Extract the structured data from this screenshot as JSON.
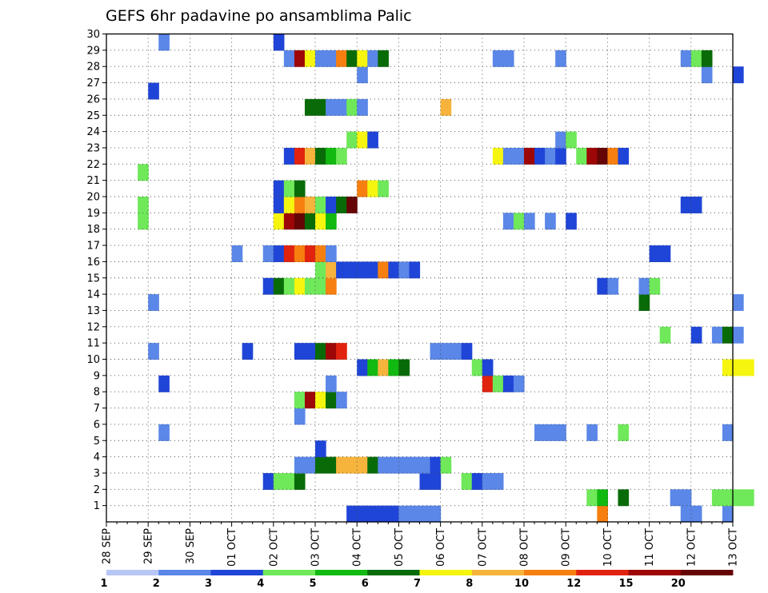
{
  "chart_data": {
    "type": "heatmap",
    "title": "GEFS 6hr padavine po ansamblima Palic",
    "x_labels": [
      "28 SEP",
      "29 SEP",
      "30 SEP",
      "01 OCT",
      "02 OCT",
      "03 OCT",
      "04 OCT",
      "05 OCT",
      "06 OCT",
      "07 OCT",
      "08 OCT",
      "09 OCT",
      "10 OCT",
      "11 OCT",
      "12 OCT",
      "13 OCT"
    ],
    "y_ticks": [
      1,
      2,
      3,
      4,
      5,
      6,
      7,
      8,
      9,
      10,
      11,
      12,
      13,
      14,
      15,
      16,
      17,
      18,
      19,
      20,
      21,
      22,
      23,
      24,
      25,
      26,
      27,
      28,
      29,
      30
    ],
    "x_unit": "6-hour step from 28 SEP 00Z (4 steps per day)",
    "y_range": [
      0,
      30
    ],
    "grid": true,
    "colorbar": {
      "labels": [
        "1",
        "2",
        "3",
        "4",
        "5",
        "6",
        "7",
        "8",
        "10",
        "12",
        "15",
        "20"
      ],
      "colors": [
        "#b7c7f5",
        "#5a87e8",
        "#1f45d8",
        "#6fe85a",
        "#11b911",
        "#086b08",
        "#f5f50f",
        "#f6b43c",
        "#f67f0f",
        "#e1220f",
        "#9e0707",
        "#650505"
      ]
    },
    "cells": [
      [
        23,
        0,
        2
      ],
      [
        24,
        0,
        2
      ],
      [
        25,
        0,
        2
      ],
      [
        26,
        0,
        2
      ],
      [
        27,
        0,
        2
      ],
      [
        28,
        0,
        1
      ],
      [
        29,
        0,
        1
      ],
      [
        30,
        0,
        1
      ],
      [
        31,
        0,
        1
      ],
      [
        47,
        0,
        8
      ],
      [
        55,
        0,
        1
      ],
      [
        56,
        0,
        1
      ],
      [
        59,
        0,
        1
      ],
      [
        46,
        1,
        3
      ],
      [
        47,
        1,
        4
      ],
      [
        49,
        1,
        5
      ],
      [
        54,
        1,
        1
      ],
      [
        55,
        1,
        1
      ],
      [
        58,
        1,
        3
      ],
      [
        59,
        1,
        3
      ],
      [
        60,
        1,
        3
      ],
      [
        61,
        1,
        3
      ],
      [
        15,
        2,
        2
      ],
      [
        16,
        2,
        3
      ],
      [
        17,
        2,
        3
      ],
      [
        18,
        2,
        5
      ],
      [
        30,
        2,
        2
      ],
      [
        31,
        2,
        2
      ],
      [
        34,
        2,
        3
      ],
      [
        35,
        2,
        2
      ],
      [
        36,
        2,
        1
      ],
      [
        37,
        2,
        1
      ],
      [
        18,
        3,
        1
      ],
      [
        19,
        3,
        1
      ],
      [
        20,
        3,
        5
      ],
      [
        21,
        3,
        5
      ],
      [
        22,
        3,
        7
      ],
      [
        23,
        3,
        7
      ],
      [
        24,
        3,
        7
      ],
      [
        25,
        3,
        5
      ],
      [
        26,
        3,
        1
      ],
      [
        27,
        3,
        1
      ],
      [
        28,
        3,
        1
      ],
      [
        29,
        3,
        1
      ],
      [
        30,
        3,
        1
      ],
      [
        31,
        3,
        2
      ],
      [
        32,
        3,
        3
      ],
      [
        20,
        4,
        2
      ],
      [
        5,
        5,
        1
      ],
      [
        41,
        5,
        1
      ],
      [
        42,
        5,
        1
      ],
      [
        43,
        5,
        1
      ],
      [
        46,
        5,
        1
      ],
      [
        49,
        5,
        3
      ],
      [
        59,
        5,
        1
      ],
      [
        18,
        6,
        1
      ],
      [
        18,
        7,
        3
      ],
      [
        19,
        7,
        10
      ],
      [
        20,
        7,
        6
      ],
      [
        21,
        7,
        5
      ],
      [
        22,
        7,
        1
      ],
      [
        5,
        8,
        2
      ],
      [
        21,
        8,
        1
      ],
      [
        36,
        8,
        9
      ],
      [
        37,
        8,
        3
      ],
      [
        38,
        8,
        2
      ],
      [
        39,
        8,
        1
      ],
      [
        24,
        9,
        2
      ],
      [
        25,
        9,
        4
      ],
      [
        26,
        9,
        7
      ],
      [
        27,
        9,
        4
      ],
      [
        28,
        9,
        5
      ],
      [
        35,
        9,
        3
      ],
      [
        36,
        9,
        2
      ],
      [
        59,
        9,
        6
      ],
      [
        60,
        9,
        6
      ],
      [
        61,
        9,
        6
      ],
      [
        4,
        10,
        1
      ],
      [
        13,
        10,
        2
      ],
      [
        18,
        10,
        2
      ],
      [
        19,
        10,
        2
      ],
      [
        20,
        10,
        5
      ],
      [
        21,
        10,
        10
      ],
      [
        22,
        10,
        9
      ],
      [
        31,
        10,
        1
      ],
      [
        32,
        10,
        1
      ],
      [
        33,
        10,
        1
      ],
      [
        34,
        10,
        2
      ],
      [
        53,
        11,
        3
      ],
      [
        56,
        11,
        2
      ],
      [
        58,
        11,
        1
      ],
      [
        59,
        11,
        5
      ],
      [
        60,
        11,
        1
      ],
      [
        4,
        13,
        1
      ],
      [
        51,
        13,
        5
      ],
      [
        60,
        13,
        1
      ],
      [
        15,
        14,
        2
      ],
      [
        16,
        14,
        5
      ],
      [
        17,
        14,
        3
      ],
      [
        18,
        14,
        6
      ],
      [
        19,
        14,
        3
      ],
      [
        20,
        14,
        3
      ],
      [
        21,
        14,
        8
      ],
      [
        47,
        14,
        2
      ],
      [
        48,
        14,
        1
      ],
      [
        51,
        14,
        1
      ],
      [
        52,
        14,
        3
      ],
      [
        20,
        15,
        3
      ],
      [
        21,
        15,
        7
      ],
      [
        22,
        15,
        2
      ],
      [
        23,
        15,
        2
      ],
      [
        24,
        15,
        2
      ],
      [
        25,
        15,
        2
      ],
      [
        26,
        15,
        8
      ],
      [
        27,
        15,
        2
      ],
      [
        28,
        15,
        1
      ],
      [
        29,
        15,
        2
      ],
      [
        12,
        16,
        1
      ],
      [
        15,
        16,
        1
      ],
      [
        16,
        16,
        2
      ],
      [
        17,
        16,
        9
      ],
      [
        18,
        16,
        8
      ],
      [
        19,
        16,
        9
      ],
      [
        20,
        16,
        8
      ],
      [
        21,
        16,
        1
      ],
      [
        52,
        16,
        2
      ],
      [
        53,
        16,
        2
      ],
      [
        3,
        18,
        3
      ],
      [
        16,
        18,
        6
      ],
      [
        17,
        18,
        10
      ],
      [
        18,
        18,
        11
      ],
      [
        19,
        18,
        5
      ],
      [
        20,
        18,
        6
      ],
      [
        21,
        18,
        4
      ],
      [
        38,
        18,
        1
      ],
      [
        39,
        18,
        3
      ],
      [
        40,
        18,
        1
      ],
      [
        42,
        18,
        1
      ],
      [
        44,
        18,
        2
      ],
      [
        3,
        19,
        3
      ],
      [
        16,
        19,
        2
      ],
      [
        17,
        19,
        6
      ],
      [
        18,
        19,
        8
      ],
      [
        19,
        19,
        7
      ],
      [
        20,
        19,
        3
      ],
      [
        21,
        19,
        2
      ],
      [
        22,
        19,
        5
      ],
      [
        23,
        19,
        11
      ],
      [
        55,
        19,
        2
      ],
      [
        56,
        19,
        2
      ],
      [
        16,
        20,
        2
      ],
      [
        17,
        20,
        3
      ],
      [
        18,
        20,
        5
      ],
      [
        24,
        20,
        8
      ],
      [
        25,
        20,
        6
      ],
      [
        26,
        20,
        3
      ],
      [
        3,
        21,
        3
      ],
      [
        17,
        22,
        2
      ],
      [
        18,
        22,
        9
      ],
      [
        19,
        22,
        7
      ],
      [
        20,
        22,
        5
      ],
      [
        21,
        22,
        4
      ],
      [
        22,
        22,
        3
      ],
      [
        37,
        22,
        6
      ],
      [
        38,
        22,
        1
      ],
      [
        39,
        22,
        1
      ],
      [
        40,
        22,
        10
      ],
      [
        41,
        22,
        2
      ],
      [
        42,
        22,
        1
      ],
      [
        43,
        22,
        2
      ],
      [
        45,
        22,
        3
      ],
      [
        46,
        22,
        10
      ],
      [
        47,
        22,
        11
      ],
      [
        48,
        22,
        8
      ],
      [
        49,
        22,
        2
      ],
      [
        23,
        23,
        3
      ],
      [
        24,
        23,
        6
      ],
      [
        25,
        23,
        2
      ],
      [
        43,
        23,
        1
      ],
      [
        44,
        23,
        3
      ],
      [
        19,
        25,
        5
      ],
      [
        20,
        25,
        5
      ],
      [
        21,
        25,
        1
      ],
      [
        22,
        25,
        1
      ],
      [
        23,
        25,
        3
      ],
      [
        24,
        25,
        1
      ],
      [
        32,
        25,
        7
      ],
      [
        4,
        26,
        2
      ],
      [
        24,
        27,
        1
      ],
      [
        57,
        27,
        1
      ],
      [
        60,
        27,
        2
      ],
      [
        17,
        28,
        1
      ],
      [
        18,
        28,
        10
      ],
      [
        19,
        28,
        6
      ],
      [
        20,
        28,
        1
      ],
      [
        21,
        28,
        1
      ],
      [
        22,
        28,
        8
      ],
      [
        23,
        28,
        5
      ],
      [
        24,
        28,
        6
      ],
      [
        25,
        28,
        1
      ],
      [
        26,
        28,
        5
      ],
      [
        37,
        28,
        1
      ],
      [
        38,
        28,
        1
      ],
      [
        43,
        28,
        1
      ],
      [
        55,
        28,
        1
      ],
      [
        56,
        28,
        3
      ],
      [
        57,
        28,
        5
      ],
      [
        5,
        29,
        1
      ],
      [
        16,
        29,
        2
      ]
    ]
  }
}
